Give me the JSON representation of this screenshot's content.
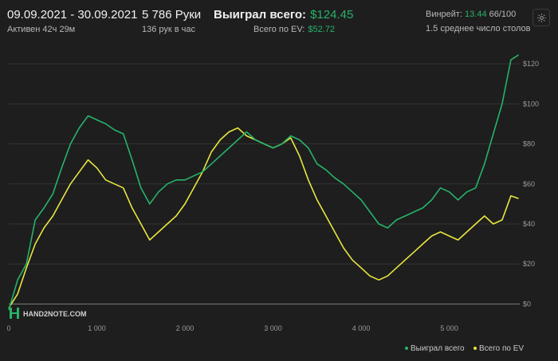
{
  "header": {
    "date_range": "09.09.2021 - 30.09.2021",
    "active": "Активен 42ч 29м",
    "hands": "5 786 Руки",
    "hands_per_hour": "136 рук в час",
    "won_total_label": "Выиграл всего:",
    "won_total_value": "$124.45",
    "ev_label": "Всего по EV:",
    "ev_value": "$52.72",
    "winrate_label": "Винрейт:",
    "winrate_value": "13.44",
    "winrate_suffix": "66/100",
    "avg_tables": "1.5 среднее число столов"
  },
  "colors": {
    "won": "#27b36a",
    "ev": "#e8e640",
    "background": "#1e1e1e",
    "grid": "#333333"
  },
  "icons": {
    "settings": "gear-icon",
    "logo": "hand2note-logo"
  },
  "watermark": "HAND2NOTE.COM",
  "chart_data": {
    "type": "line",
    "x_ticks": [
      "0",
      "1 000",
      "2 000",
      "3 000",
      "4 000",
      "5 000"
    ],
    "y_ticks": [
      "$0",
      "$20",
      "$40",
      "$60",
      "$80",
      "$100",
      "$120"
    ],
    "xlim": [
      0,
      5800
    ],
    "ylim": [
      -5,
      130
    ],
    "grid": true,
    "legend_position": "bottom-right",
    "series": [
      {
        "name": "Выиграл всего",
        "color": "#27b36a",
        "points": [
          [
            0,
            -3
          ],
          [
            100,
            12
          ],
          [
            200,
            20
          ],
          [
            300,
            42
          ],
          [
            400,
            48
          ],
          [
            500,
            55
          ],
          [
            600,
            68
          ],
          [
            700,
            80
          ],
          [
            800,
            88
          ],
          [
            900,
            94
          ],
          [
            1000,
            92
          ],
          [
            1100,
            90
          ],
          [
            1200,
            87
          ],
          [
            1300,
            85
          ],
          [
            1400,
            72
          ],
          [
            1500,
            58
          ],
          [
            1600,
            50
          ],
          [
            1700,
            56
          ],
          [
            1800,
            60
          ],
          [
            1900,
            62
          ],
          [
            2000,
            62
          ],
          [
            2100,
            64
          ],
          [
            2200,
            66
          ],
          [
            2300,
            70
          ],
          [
            2400,
            74
          ],
          [
            2500,
            78
          ],
          [
            2600,
            82
          ],
          [
            2700,
            86
          ],
          [
            2800,
            82
          ],
          [
            2900,
            80
          ],
          [
            3000,
            78
          ],
          [
            3100,
            80
          ],
          [
            3200,
            84
          ],
          [
            3300,
            82
          ],
          [
            3400,
            78
          ],
          [
            3500,
            70
          ],
          [
            3600,
            67
          ],
          [
            3700,
            63
          ],
          [
            3800,
            60
          ],
          [
            3900,
            56
          ],
          [
            4000,
            52
          ],
          [
            4100,
            46
          ],
          [
            4200,
            40
          ],
          [
            4300,
            38
          ],
          [
            4400,
            42
          ],
          [
            4500,
            44
          ],
          [
            4600,
            46
          ],
          [
            4700,
            48
          ],
          [
            4800,
            52
          ],
          [
            4900,
            58
          ],
          [
            5000,
            56
          ],
          [
            5100,
            52
          ],
          [
            5200,
            56
          ],
          [
            5300,
            58
          ],
          [
            5400,
            70
          ],
          [
            5500,
            85
          ],
          [
            5600,
            100
          ],
          [
            5700,
            122
          ],
          [
            5786,
            124.45
          ]
        ]
      },
      {
        "name": "Всего по EV",
        "color": "#e8e640",
        "points": [
          [
            0,
            -2
          ],
          [
            100,
            5
          ],
          [
            200,
            18
          ],
          [
            300,
            30
          ],
          [
            400,
            38
          ],
          [
            500,
            44
          ],
          [
            600,
            52
          ],
          [
            700,
            60
          ],
          [
            800,
            66
          ],
          [
            900,
            72
          ],
          [
            1000,
            68
          ],
          [
            1100,
            62
          ],
          [
            1200,
            60
          ],
          [
            1300,
            58
          ],
          [
            1400,
            48
          ],
          [
            1500,
            40
          ],
          [
            1600,
            32
          ],
          [
            1700,
            36
          ],
          [
            1800,
            40
          ],
          [
            1900,
            44
          ],
          [
            2000,
            50
          ],
          [
            2100,
            58
          ],
          [
            2200,
            66
          ],
          [
            2300,
            76
          ],
          [
            2400,
            82
          ],
          [
            2500,
            86
          ],
          [
            2600,
            88
          ],
          [
            2700,
            84
          ],
          [
            2800,
            82
          ],
          [
            2900,
            80
          ],
          [
            3000,
            78
          ],
          [
            3100,
            80
          ],
          [
            3200,
            83
          ],
          [
            3300,
            74
          ],
          [
            3400,
            62
          ],
          [
            3500,
            52
          ],
          [
            3600,
            44
          ],
          [
            3700,
            36
          ],
          [
            3800,
            28
          ],
          [
            3900,
            22
          ],
          [
            4000,
            18
          ],
          [
            4100,
            14
          ],
          [
            4200,
            12
          ],
          [
            4300,
            14
          ],
          [
            4400,
            18
          ],
          [
            4500,
            22
          ],
          [
            4600,
            26
          ],
          [
            4700,
            30
          ],
          [
            4800,
            34
          ],
          [
            4900,
            36
          ],
          [
            5000,
            34
          ],
          [
            5100,
            32
          ],
          [
            5200,
            36
          ],
          [
            5300,
            40
          ],
          [
            5400,
            44
          ],
          [
            5500,
            40
          ],
          [
            5600,
            42
          ],
          [
            5700,
            54
          ],
          [
            5786,
            52.72
          ]
        ]
      }
    ]
  }
}
